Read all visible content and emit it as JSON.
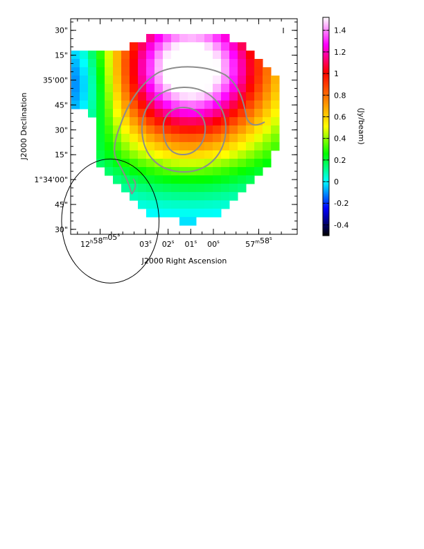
{
  "chart_data": {
    "type": "heatmap",
    "stokes_label": "I",
    "xlabel": "J2000 Right Ascension",
    "ylabel": "J2000 Declination",
    "colorbar_label": "(Jy/beam)",
    "colorbar_range": [
      -0.5,
      1.52
    ],
    "colorbar_ticks": [
      "-0.4",
      "-0.2",
      "0",
      "0.2",
      "0.4",
      "0.6",
      "0.8",
      "1",
      "1.2",
      "1.4"
    ],
    "colorbar_tick_values": [
      -0.4,
      -0.2,
      0,
      0.2,
      0.4,
      0.6,
      0.8,
      1.0,
      1.2,
      1.4
    ],
    "x_ticks": [
      {
        "h": "12",
        "m": "58",
        "s": "05",
        "ra_sec": 5
      },
      {
        "s": "03",
        "ra_sec": 3
      },
      {
        "s": "02",
        "ra_sec": 2
      },
      {
        "s": "01",
        "ra_sec": 1
      },
      {
        "s": "00",
        "ra_sec": 0
      },
      {
        "m": "57",
        "s": "58",
        "ra_sec": -2
      }
    ],
    "ra_range_sec": [
      6.3,
      -3.7
    ],
    "y_ticks": [
      {
        "label": "30\"",
        "dec_arcsec": 90
      },
      {
        "label": "15\"",
        "dec_arcsec": 75
      },
      {
        "label": "35'00\"",
        "dec_arcsec": 60
      },
      {
        "label": "45\"",
        "dec_arcsec": 45
      },
      {
        "label": "30\"",
        "dec_arcsec": 30
      },
      {
        "label": "15\"",
        "dec_arcsec": 15
      },
      {
        "label": "1°34'00\"",
        "dec_arcsec": 0
      },
      {
        "label": "45\"",
        "dec_arcsec": -15
      },
      {
        "label": "30\"",
        "dec_arcsec": -30
      }
    ],
    "dec_range_arcsec": [
      -33,
      97
    ],
    "source_peak": {
      "ra_sec": 1.0,
      "dec_arcsec": 27,
      "value": 1.0
    },
    "contour_levels": [
      0.9,
      0.6,
      0.3
    ],
    "contour_color": "#8c8c8c",
    "beam_ellipse": {
      "ra_sec": 4.55,
      "dec_arcsec": -25,
      "major_arcsec": 34,
      "minor_arcsec": 28
    },
    "colormap": [
      "#000000",
      "#0000ff",
      "#00ffff",
      "#00ff00",
      "#ffff00",
      "#ff8000",
      "#ff0000",
      "#ff00ff",
      "#ffffff"
    ]
  }
}
